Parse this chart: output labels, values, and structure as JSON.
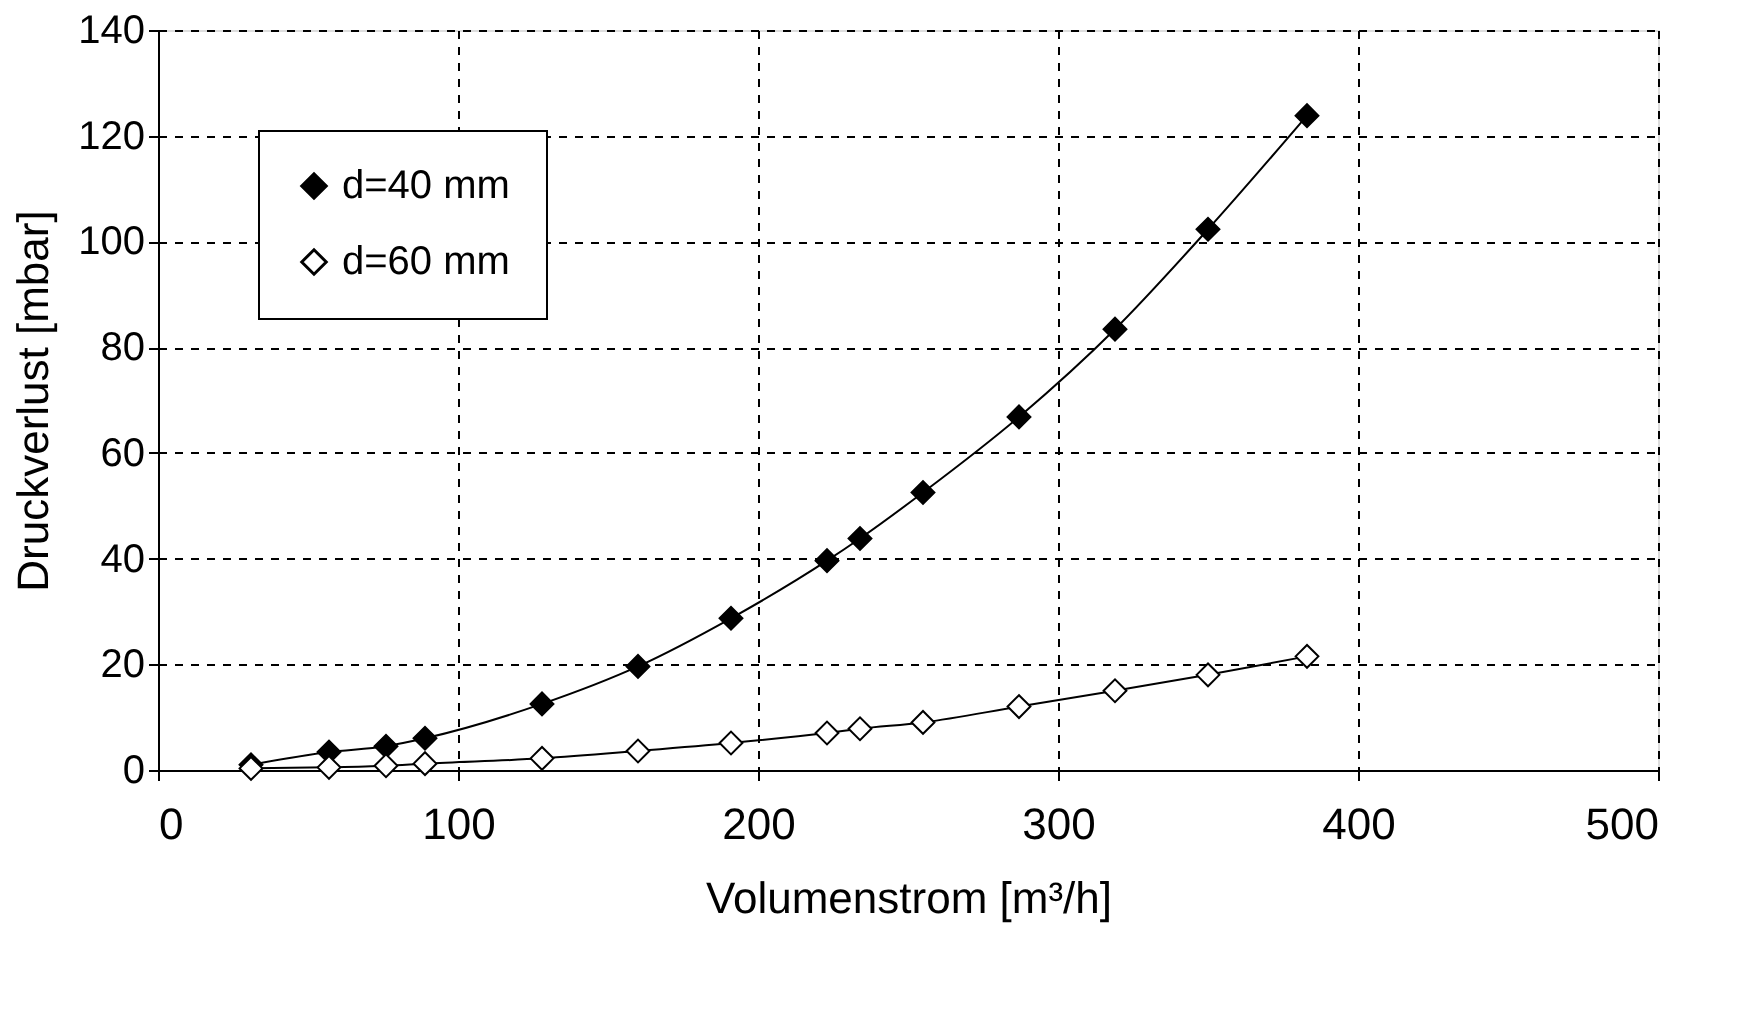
{
  "chart_data": {
    "type": "line",
    "xlabel": "Volumenstrom [m³/h]",
    "ylabel": "Druckverlust [mbar]",
    "x": [
      31,
      57,
      76,
      89,
      128,
      160,
      191,
      223,
      234,
      255,
      287,
      319,
      350,
      383
    ],
    "series": [
      {
        "name": "d=40 mm",
        "color": "#000000",
        "values": [
          1,
          3.4,
          4.5,
          6,
          12.5,
          19.6,
          28.7,
          39.6,
          43.8,
          52.5,
          66.8,
          83.4,
          102.3,
          123.8
        ]
      },
      {
        "name": "d=60 mm",
        "color": "#000000",
        "values": [
          0.3,
          0.5,
          0.8,
          1.2,
          2.2,
          3.6,
          5.1,
          7,
          7.8,
          9,
          12,
          15,
          18,
          21.5
        ]
      }
    ],
    "xlim": [
      0,
      500
    ],
    "xticks": [
      0,
      100,
      200,
      300,
      400,
      500
    ],
    "ylim": [
      0,
      140
    ],
    "yticks": [
      0,
      20,
      40,
      60,
      80,
      100,
      120,
      140
    ],
    "grid": true,
    "legend": "top left",
    "marker": "diamond",
    "line_style": "solid"
  }
}
